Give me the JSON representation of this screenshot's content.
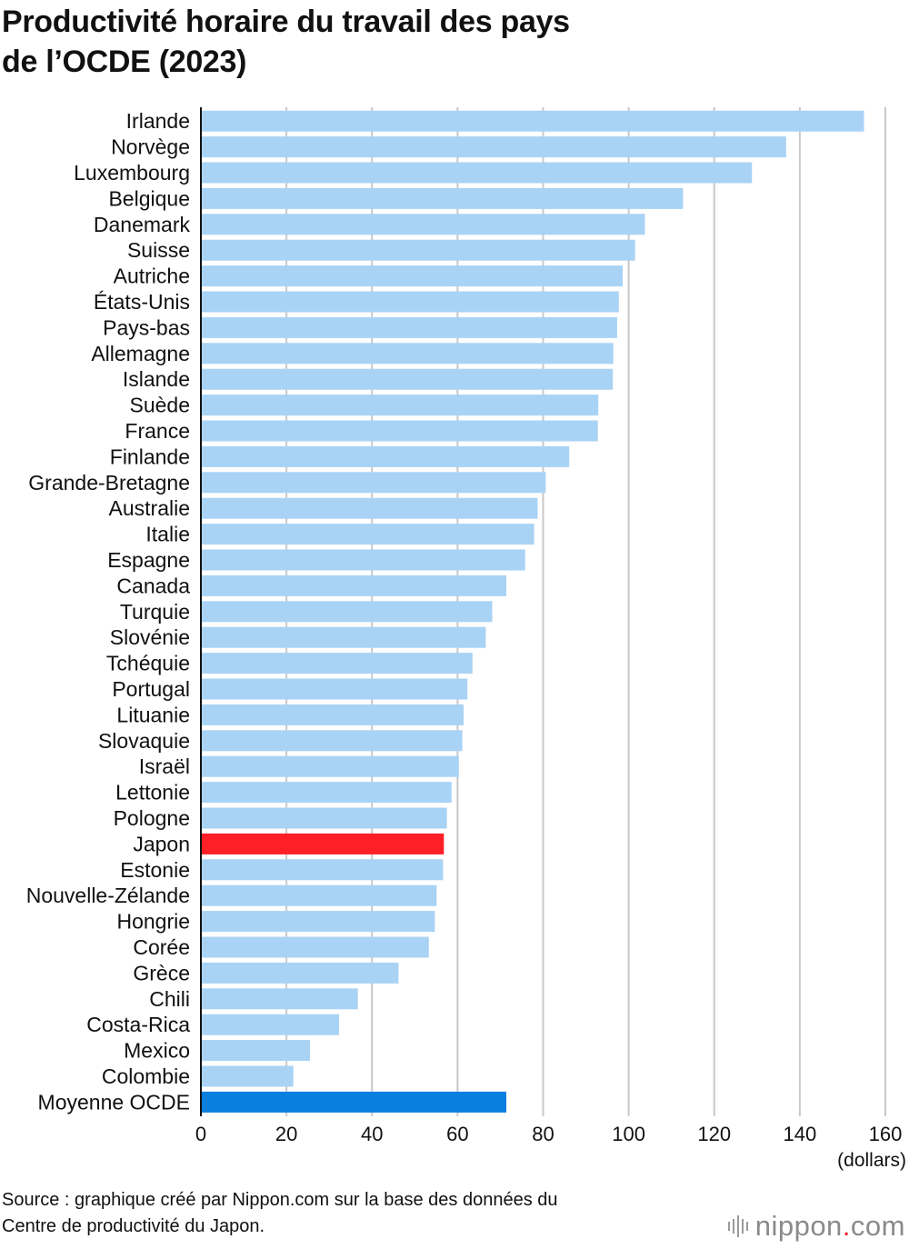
{
  "title_lines": [
    "Productivité horaire du travail des pays",
    "de l’OCDE (2023)"
  ],
  "source_lines": [
    "Source : graphique créé par Nippon.com sur la base des données du",
    "Centre de productivité du Japon."
  ],
  "brand": {
    "name": "nippon",
    "dot": ".",
    "tld": "com"
  },
  "colors": {
    "default_bar": "#a9d3f5",
    "highlight_bar": "#ff1f27",
    "average_bar": "#0a7fe0",
    "grid": "#c8c8c8",
    "axis": "#111111"
  },
  "chart_data": {
    "type": "bar",
    "orientation": "horizontal",
    "title": "Productivité horaire du travail des pays de l’OCDE (2023)",
    "xlabel": "(dollars)",
    "xlim": [
      0,
      160
    ],
    "xticks": [
      0,
      20,
      40,
      60,
      80,
      100,
      120,
      140,
      160
    ],
    "grid": true,
    "categories": [
      "Irlande",
      "Norvège",
      "Luxembourg",
      "Belgique",
      "Danemark",
      "Suisse",
      "Autriche",
      "États-Unis",
      "Pays-bas",
      "Allemagne",
      "Islande",
      "Suède",
      "France",
      "Finlande",
      "Grande-Bretagne",
      "Australie",
      "Italie",
      "Espagne",
      "Canada",
      "Turquie",
      "Slovénie",
      "Tchéquie",
      "Portugal",
      "Lituanie",
      "Slovaquie",
      "Israël",
      "Lettonie",
      "Pologne",
      "Japon",
      "Estonie",
      "Nouvelle-Zélande",
      "Hongrie",
      "Corée",
      "Grèce",
      "Chili",
      "Costa-Rica",
      "Mexico",
      "Colombie",
      "Moyenne OCDE"
    ],
    "values": [
      155.0,
      136.8,
      128.8,
      112.7,
      103.8,
      101.5,
      98.6,
      97.7,
      97.3,
      96.4,
      96.3,
      92.9,
      92.8,
      86.1,
      80.6,
      78.7,
      77.9,
      75.8,
      71.4,
      68.1,
      66.6,
      63.5,
      62.3,
      61.4,
      61.1,
      60.3,
      58.6,
      57.5,
      56.8,
      56.6,
      55.1,
      54.7,
      53.3,
      46.2,
      36.7,
      32.3,
      25.5,
      21.6,
      71.4
    ],
    "highlights": {
      "Japon": "highlight_bar",
      "Moyenne OCDE": "average_bar"
    }
  }
}
